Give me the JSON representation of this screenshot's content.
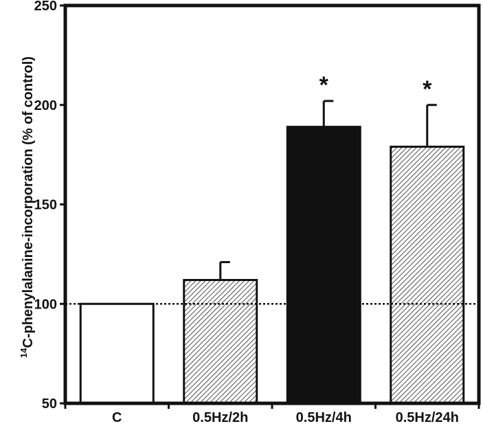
{
  "chart_data": {
    "type": "bar",
    "categories": [
      "C",
      "0.5Hz/2h",
      "0.5Hz/4h",
      "0.5Hz/24h"
    ],
    "values": [
      100,
      112,
      189,
      179
    ],
    "errors": [
      0,
      9,
      13,
      21
    ],
    "fills": [
      "white",
      "hatch",
      "#111111",
      "hatch"
    ],
    "significance": [
      "",
      "",
      "*",
      "*"
    ],
    "ylabel_sup": "14",
    "ylabel": "C-phenylalanine-incorporation (% of control)",
    "xlabel": "",
    "ylim": [
      50,
      250
    ],
    "yticks": [
      50,
      100,
      150,
      200,
      250
    ],
    "reference_line": 100,
    "grid": false,
    "legend": "none"
  }
}
